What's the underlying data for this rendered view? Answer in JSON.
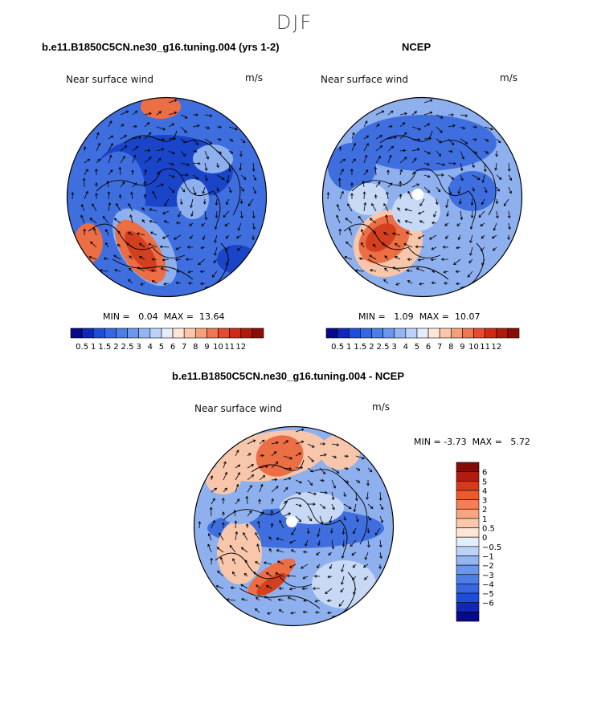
{
  "season_title": "DJF",
  "panels": [
    {
      "title": "b.e11.B1850C5CN.ne30_g16.tuning.004 (yrs 1-2)",
      "field_label": "Near surface wind",
      "units": "m/s",
      "min_label": "MIN =",
      "min_value": "0.04",
      "max_label": "MAX =",
      "max_value": "13.64"
    },
    {
      "title": "NCEP",
      "field_label": "Near surface wind",
      "units": "m/s",
      "min_label": "MIN =",
      "min_value": "1.09",
      "max_label": "MAX =",
      "max_value": "10.07"
    },
    {
      "title": "b.e11.B1850C5CN.ne30_g16.tuning.004 - NCEP",
      "field_label": "Near surface wind",
      "units": "m/s",
      "min_label": "MIN =",
      "min_value": "-3.73",
      "max_label": "MAX =",
      "max_value": "5.72"
    }
  ],
  "colorbar_speed": {
    "colors": [
      "#08088a",
      "#1027b8",
      "#1e4ed8",
      "#3568e0",
      "#4d7ee6",
      "#6b96ec",
      "#93b5f2",
      "#bcd3f7",
      "#e3eefb",
      "#fde6d6",
      "#f9c8aa",
      "#f5a07a",
      "#ee7650",
      "#e54c2d",
      "#cf2a14",
      "#b01a0c",
      "#8c0c06"
    ],
    "ticks": [
      "0.5",
      "1",
      "1.5",
      "2",
      "2.5",
      "3",
      "4",
      "5",
      "6",
      "7",
      "8",
      "9",
      "10",
      "11",
      "12"
    ]
  },
  "colorbar_diff": {
    "colors": [
      "#850b0b",
      "#b21c0f",
      "#d63a1e",
      "#ee5a2e",
      "#f47f56",
      "#f8a581",
      "#fbc7aa",
      "#fde6d3",
      "#e3eefb",
      "#bcd3f7",
      "#93b5f2",
      "#6b96ec",
      "#4d7ee6",
      "#3568e0",
      "#1e4ed8",
      "#1027b8",
      "#08088a"
    ],
    "ticks": [
      "6",
      "5",
      "4",
      "3",
      "2",
      "1",
      "0.5",
      "0",
      "−0.5",
      "−1",
      "−2",
      "−3",
      "−4",
      "−5",
      "−6"
    ]
  },
  "palette": {
    "deep_blue": "#1a45c8",
    "mid_blue": "#3f6fdf",
    "light_blue": "#8fb0ee",
    "pale_blue": "#c8d9f6",
    "pale_red": "#f8c6aa",
    "red": "#ec6e45",
    "dark_red": "#d2401f",
    "coast": "#000000"
  }
}
